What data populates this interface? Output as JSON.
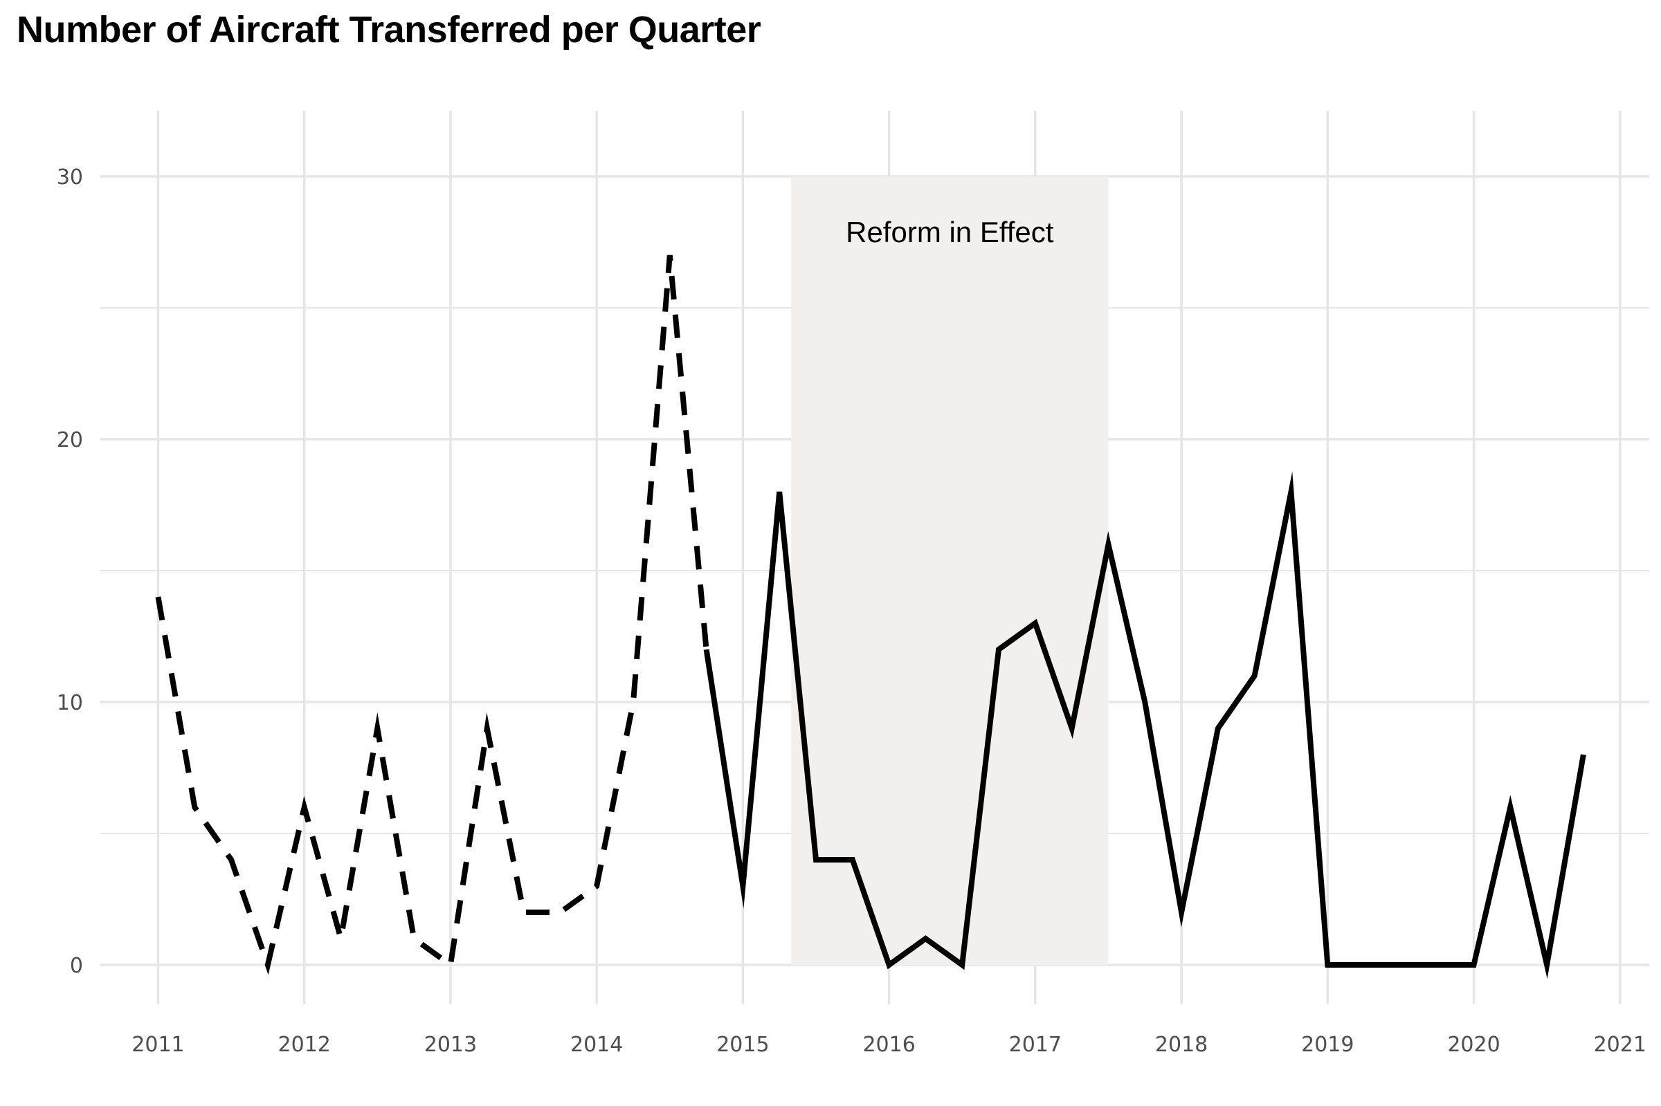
{
  "chart_data": {
    "type": "line",
    "title": "Number of Aircraft Transferred per Quarter",
    "xlabel": "",
    "ylabel": "",
    "xlim": [
      2010.6,
      2021.2
    ],
    "ylim": [
      -1.5,
      32.5
    ],
    "x_ticks": [
      {
        "value": 2011,
        "label": "2011"
      },
      {
        "value": 2012,
        "label": "2012"
      },
      {
        "value": 2013,
        "label": "2013"
      },
      {
        "value": 2014,
        "label": "2014"
      },
      {
        "value": 2015,
        "label": "2015"
      },
      {
        "value": 2016,
        "label": "2016"
      },
      {
        "value": 2017,
        "label": "2017"
      },
      {
        "value": 2018,
        "label": "2018"
      },
      {
        "value": 2019,
        "label": "2019"
      },
      {
        "value": 2020,
        "label": "2020"
      },
      {
        "value": 2021,
        "label": "2021"
      }
    ],
    "y_ticks": [
      {
        "value": 0,
        "label": "0"
      },
      {
        "value": 10,
        "label": "10"
      },
      {
        "value": 20,
        "label": "20"
      },
      {
        "value": 30,
        "label": "30"
      }
    ],
    "y_minor_ticks": [
      5,
      15,
      25
    ],
    "grid": true,
    "shaded_region": {
      "x_start": 2015.33,
      "x_end": 2017.5,
      "label": "Reform in Effect",
      "color": "#f1f0ee"
    },
    "series": [
      {
        "style": "dashed",
        "color": "#000000",
        "points": [
          [
            2011.0,
            14
          ],
          [
            2011.25,
            6
          ],
          [
            2011.5,
            4
          ],
          [
            2011.75,
            0
          ],
          [
            2012.0,
            6
          ],
          [
            2012.25,
            1
          ],
          [
            2012.5,
            9
          ],
          [
            2012.75,
            1
          ],
          [
            2013.0,
            0
          ],
          [
            2013.25,
            9
          ],
          [
            2013.5,
            2
          ],
          [
            2013.75,
            2
          ],
          [
            2014.0,
            3
          ],
          [
            2014.25,
            10
          ],
          [
            2014.5,
            27
          ],
          [
            2014.75,
            12
          ]
        ]
      },
      {
        "style": "solid",
        "color": "#000000",
        "points": [
          [
            2014.75,
            12
          ],
          [
            2015.0,
            3
          ],
          [
            2015.25,
            18
          ],
          [
            2015.5,
            4
          ],
          [
            2015.75,
            4
          ],
          [
            2016.0,
            0
          ],
          [
            2016.25,
            1
          ],
          [
            2016.5,
            0
          ],
          [
            2016.75,
            12
          ],
          [
            2017.0,
            13
          ],
          [
            2017.25,
            9
          ],
          [
            2017.5,
            16
          ],
          [
            2017.75,
            10
          ],
          [
            2018.0,
            2
          ],
          [
            2018.25,
            9
          ],
          [
            2018.5,
            11
          ],
          [
            2018.75,
            18
          ],
          [
            2019.0,
            0
          ],
          [
            2019.25,
            0
          ],
          [
            2019.5,
            0
          ],
          [
            2019.75,
            0
          ],
          [
            2020.0,
            0
          ],
          [
            2020.25,
            6
          ],
          [
            2020.5,
            0
          ],
          [
            2020.75,
            8
          ]
        ]
      }
    ]
  }
}
